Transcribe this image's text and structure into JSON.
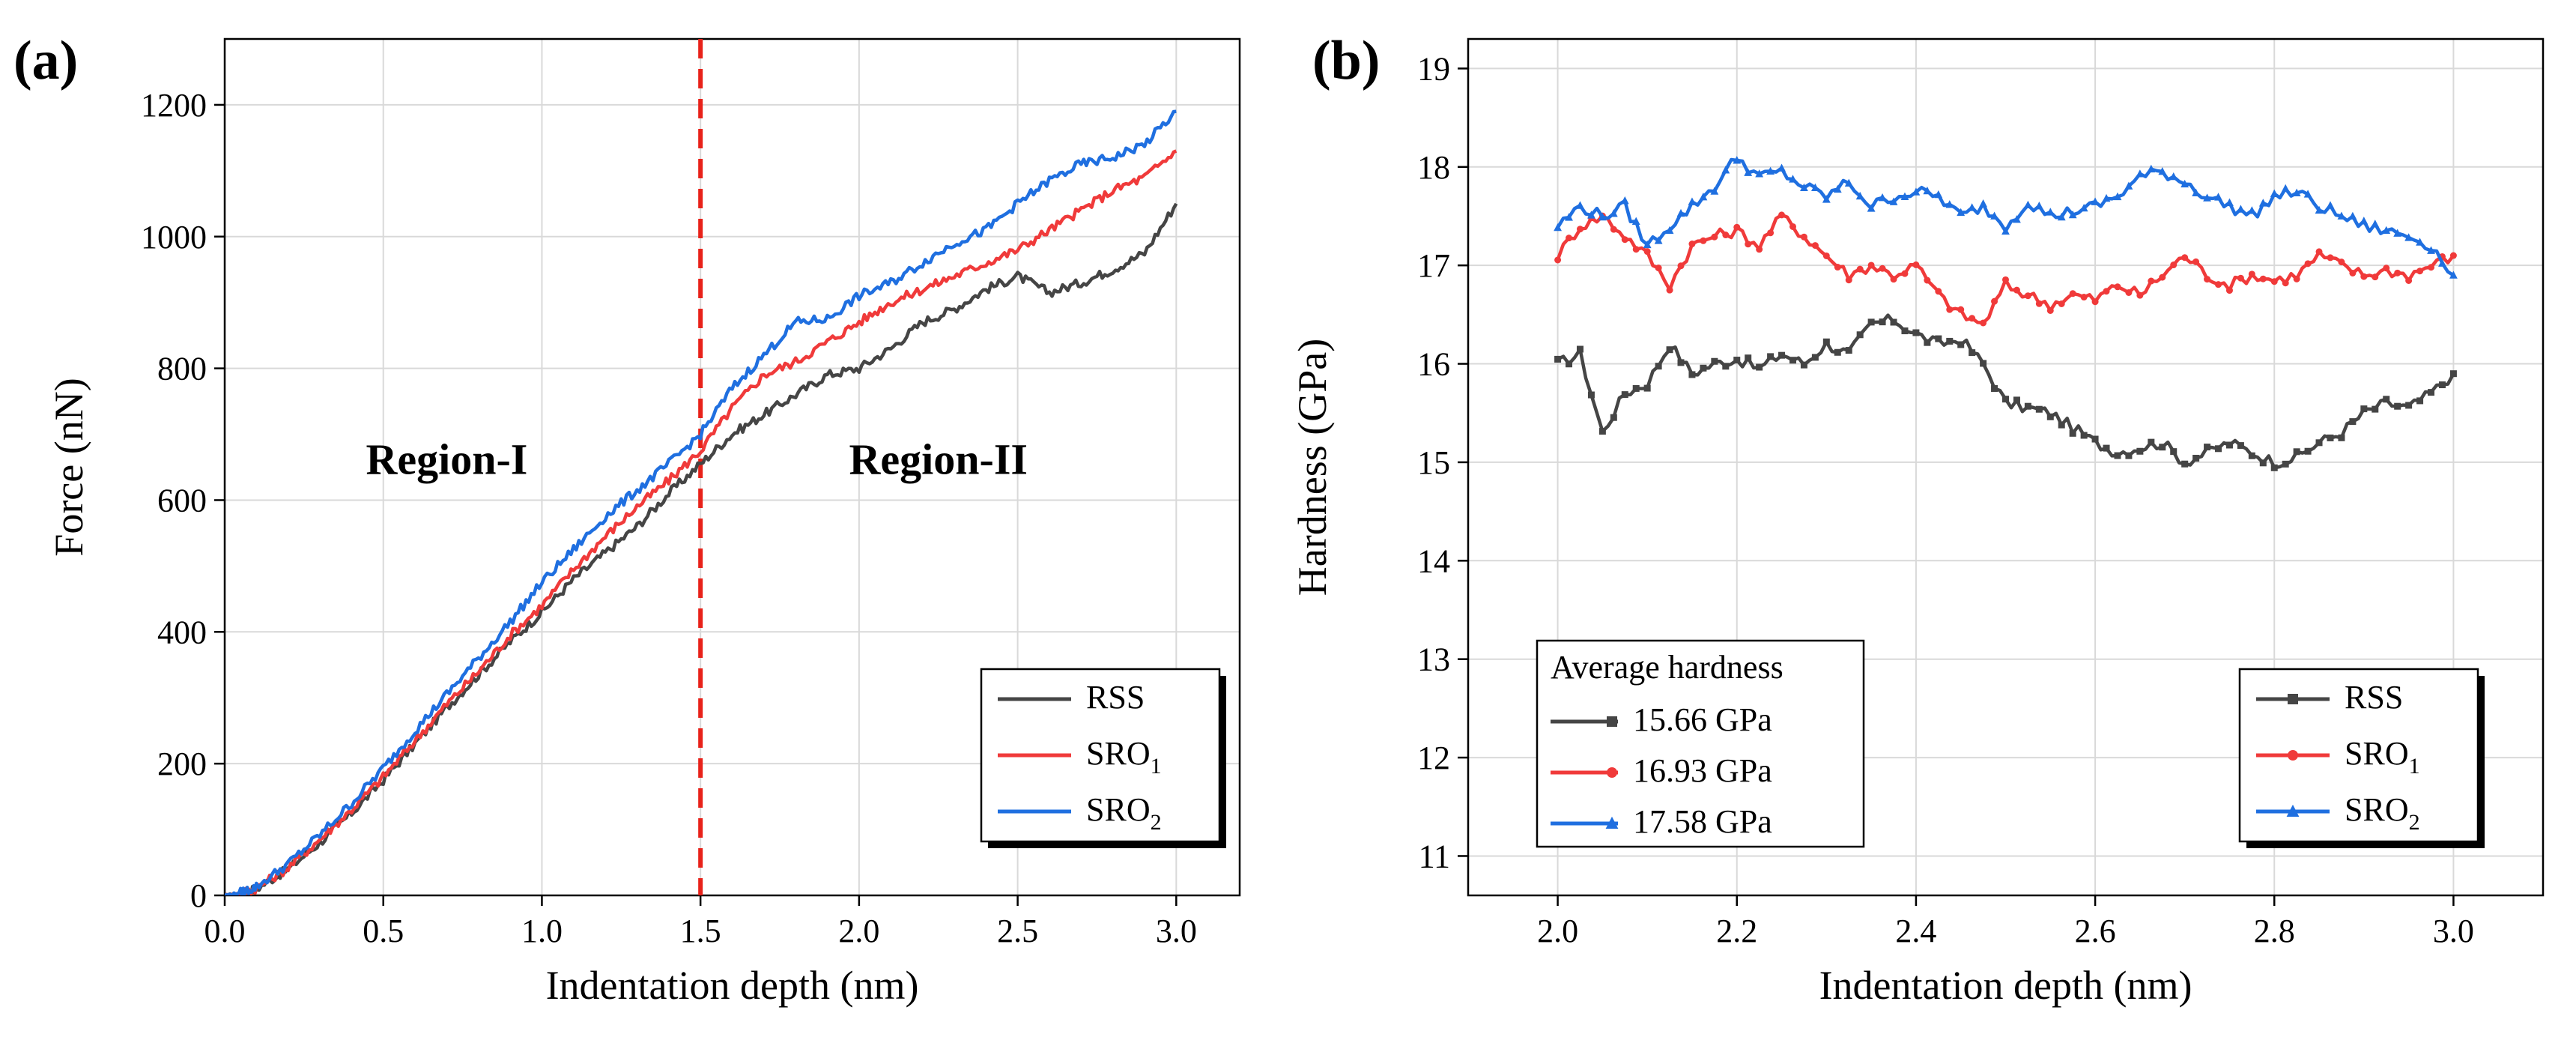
{
  "figure": {
    "panel_a_label": "(a)",
    "panel_b_label": "(b)"
  },
  "chart_data": [
    {
      "type": "line",
      "title": "",
      "xlabel": "Indentation depth (nm)",
      "ylabel": "Force (nN)",
      "xlim": [
        0,
        3.2
      ],
      "ylim": [
        0,
        1300
      ],
      "xticks": [
        "0.0",
        "0.5",
        "1.0",
        "1.5",
        "2.0",
        "2.5",
        "3.0"
      ],
      "yticks": [
        "0",
        "200",
        "400",
        "600",
        "800",
        "1000",
        "1200"
      ],
      "grid": true,
      "legend_position": "bottom-right",
      "annotations": [
        {
          "text": "Region-I",
          "x": 0.7,
          "y": 640
        },
        {
          "text": "Region-II",
          "x": 2.25,
          "y": 640
        }
      ],
      "vline": {
        "x": 1.5,
        "color": "#e8221a",
        "style": "dashed"
      },
      "x": [
        0.0,
        0.05,
        0.1,
        0.2,
        0.3,
        0.4,
        0.5,
        0.6,
        0.7,
        0.8,
        0.9,
        1.0,
        1.1,
        1.2,
        1.3,
        1.4,
        1.5,
        1.6,
        1.7,
        1.8,
        1.9,
        2.0,
        2.1,
        2.2,
        2.3,
        2.4,
        2.5,
        2.6,
        2.7,
        2.8,
        2.9,
        3.0
      ],
      "series": [
        {
          "name": "RSS",
          "legend_main": "RSS",
          "legend_sub": "",
          "color": "#454545",
          "values": [
            0,
            3,
            10,
            40,
            80,
            125,
            175,
            230,
            285,
            335,
            385,
            430,
            480,
            520,
            560,
            610,
            655,
            700,
            730,
            760,
            790,
            800,
            830,
            870,
            890,
            920,
            940,
            915,
            930,
            950,
            975,
            1050
          ]
        },
        {
          "name": "SRO1",
          "legend_main": "SRO",
          "legend_sub": "1",
          "color": "#f03a3a",
          "values": [
            0,
            3,
            11,
            42,
            85,
            130,
            180,
            235,
            290,
            340,
            395,
            440,
            495,
            545,
            590,
            630,
            675,
            740,
            790,
            810,
            840,
            870,
            900,
            920,
            940,
            960,
            980,
            1010,
            1040,
            1070,
            1090,
            1130
          ]
        },
        {
          "name": "SRO2",
          "legend_main": "SRO",
          "legend_sub": "2",
          "color": "#1f6fe0",
          "values": [
            0,
            4,
            13,
            48,
            92,
            140,
            193,
            250,
            305,
            360,
            415,
            475,
            525,
            575,
            615,
            655,
            700,
            770,
            820,
            870,
            875,
            910,
            930,
            960,
            990,
            1010,
            1050,
            1085,
            1110,
            1120,
            1140,
            1190
          ]
        }
      ]
    },
    {
      "type": "line",
      "title": "",
      "xlabel": "Indentation depth (nm)",
      "ylabel": "Hardness (GPa)",
      "xlim": [
        1.9,
        3.1
      ],
      "ylim": [
        10.6,
        19.3
      ],
      "xticks": [
        "2.0",
        "2.2",
        "2.4",
        "2.6",
        "2.8",
        "3.0"
      ],
      "yticks": [
        "11",
        "12",
        "13",
        "14",
        "15",
        "16",
        "17",
        "18",
        "19"
      ],
      "grid": true,
      "legend_position": "bottom-right",
      "average_box": {
        "title": "Average hardness",
        "position": "bottom-left",
        "entries": [
          {
            "label": "15.66 GPa",
            "color": "#454545",
            "marker": "square"
          },
          {
            "label": "16.93 GPa",
            "color": "#f03a3a",
            "marker": "circle"
          },
          {
            "label": "17.58 GPa",
            "color": "#1f6fe0",
            "marker": "triangle"
          }
        ]
      },
      "x": [
        2.0,
        2.025,
        2.05,
        2.075,
        2.1,
        2.125,
        2.15,
        2.175,
        2.2,
        2.225,
        2.25,
        2.275,
        2.3,
        2.325,
        2.35,
        2.375,
        2.4,
        2.425,
        2.45,
        2.475,
        2.5,
        2.525,
        2.55,
        2.575,
        2.6,
        2.625,
        2.65,
        2.675,
        2.7,
        2.725,
        2.75,
        2.775,
        2.8,
        2.825,
        2.85,
        2.875,
        2.9,
        2.925,
        2.95,
        2.975,
        3.0
      ],
      "series": [
        {
          "name": "RSS",
          "legend_main": "RSS",
          "legend_sub": "",
          "color": "#454545",
          "marker": "square",
          "values": [
            16.0,
            16.1,
            15.3,
            15.7,
            15.8,
            16.2,
            15.9,
            16.0,
            16.05,
            15.95,
            16.1,
            16.0,
            16.2,
            16.1,
            16.4,
            16.45,
            16.3,
            16.2,
            16.25,
            16.0,
            15.6,
            15.55,
            15.5,
            15.35,
            15.2,
            15.1,
            15.15,
            15.2,
            15.0,
            15.1,
            15.2,
            15.1,
            15.0,
            15.05,
            15.2,
            15.3,
            15.5,
            15.6,
            15.55,
            15.7,
            15.9
          ]
        },
        {
          "name": "SRO1",
          "legend_main": "SRO",
          "legend_sub": "1",
          "color": "#f03a3a",
          "marker": "circle",
          "values": [
            17.1,
            17.4,
            17.5,
            17.3,
            17.1,
            16.8,
            17.2,
            17.3,
            17.35,
            17.2,
            17.5,
            17.3,
            17.1,
            16.9,
            17.0,
            16.9,
            17.0,
            16.7,
            16.5,
            16.4,
            16.8,
            16.7,
            16.6,
            16.7,
            16.65,
            16.8,
            16.7,
            16.9,
            17.1,
            16.9,
            16.8,
            16.9,
            16.85,
            16.9,
            17.1,
            17.0,
            16.9,
            16.95,
            16.9,
            17.0,
            17.1
          ]
        },
        {
          "name": "SRO2",
          "legend_main": "SRO",
          "legend_sub": "2",
          "color": "#1f6fe0",
          "marker": "triangle",
          "values": [
            17.4,
            17.6,
            17.5,
            17.6,
            17.2,
            17.4,
            17.6,
            17.8,
            18.1,
            17.9,
            17.95,
            17.8,
            17.7,
            17.85,
            17.6,
            17.7,
            17.75,
            17.7,
            17.5,
            17.6,
            17.4,
            17.65,
            17.5,
            17.55,
            17.6,
            17.7,
            17.9,
            17.95,
            17.85,
            17.7,
            17.6,
            17.5,
            17.7,
            17.75,
            17.6,
            17.5,
            17.4,
            17.35,
            17.3,
            17.2,
            16.9
          ]
        }
      ]
    }
  ]
}
